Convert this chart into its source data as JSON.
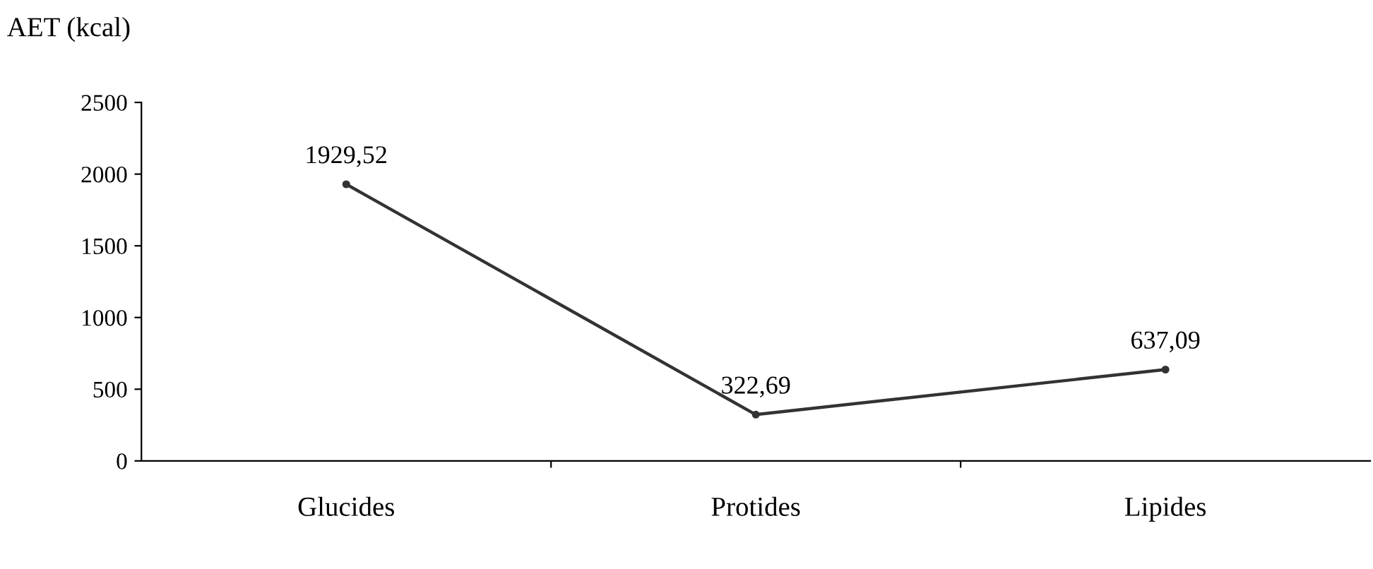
{
  "chart_data": {
    "type": "line",
    "ylabel": "AET (kcal)",
    "categories": [
      "Glucides",
      "Protides",
      "Lipides"
    ],
    "values": [
      1929.52,
      322.69,
      637.09
    ],
    "value_labels": [
      "1929,52",
      "322,69",
      "637,09"
    ],
    "color": "#333333",
    "marker": "circle",
    "ylim": [
      0,
      2500
    ],
    "yticks": [
      0,
      500,
      1000,
      1500,
      2000,
      2500
    ],
    "grid": false,
    "legend": false
  }
}
